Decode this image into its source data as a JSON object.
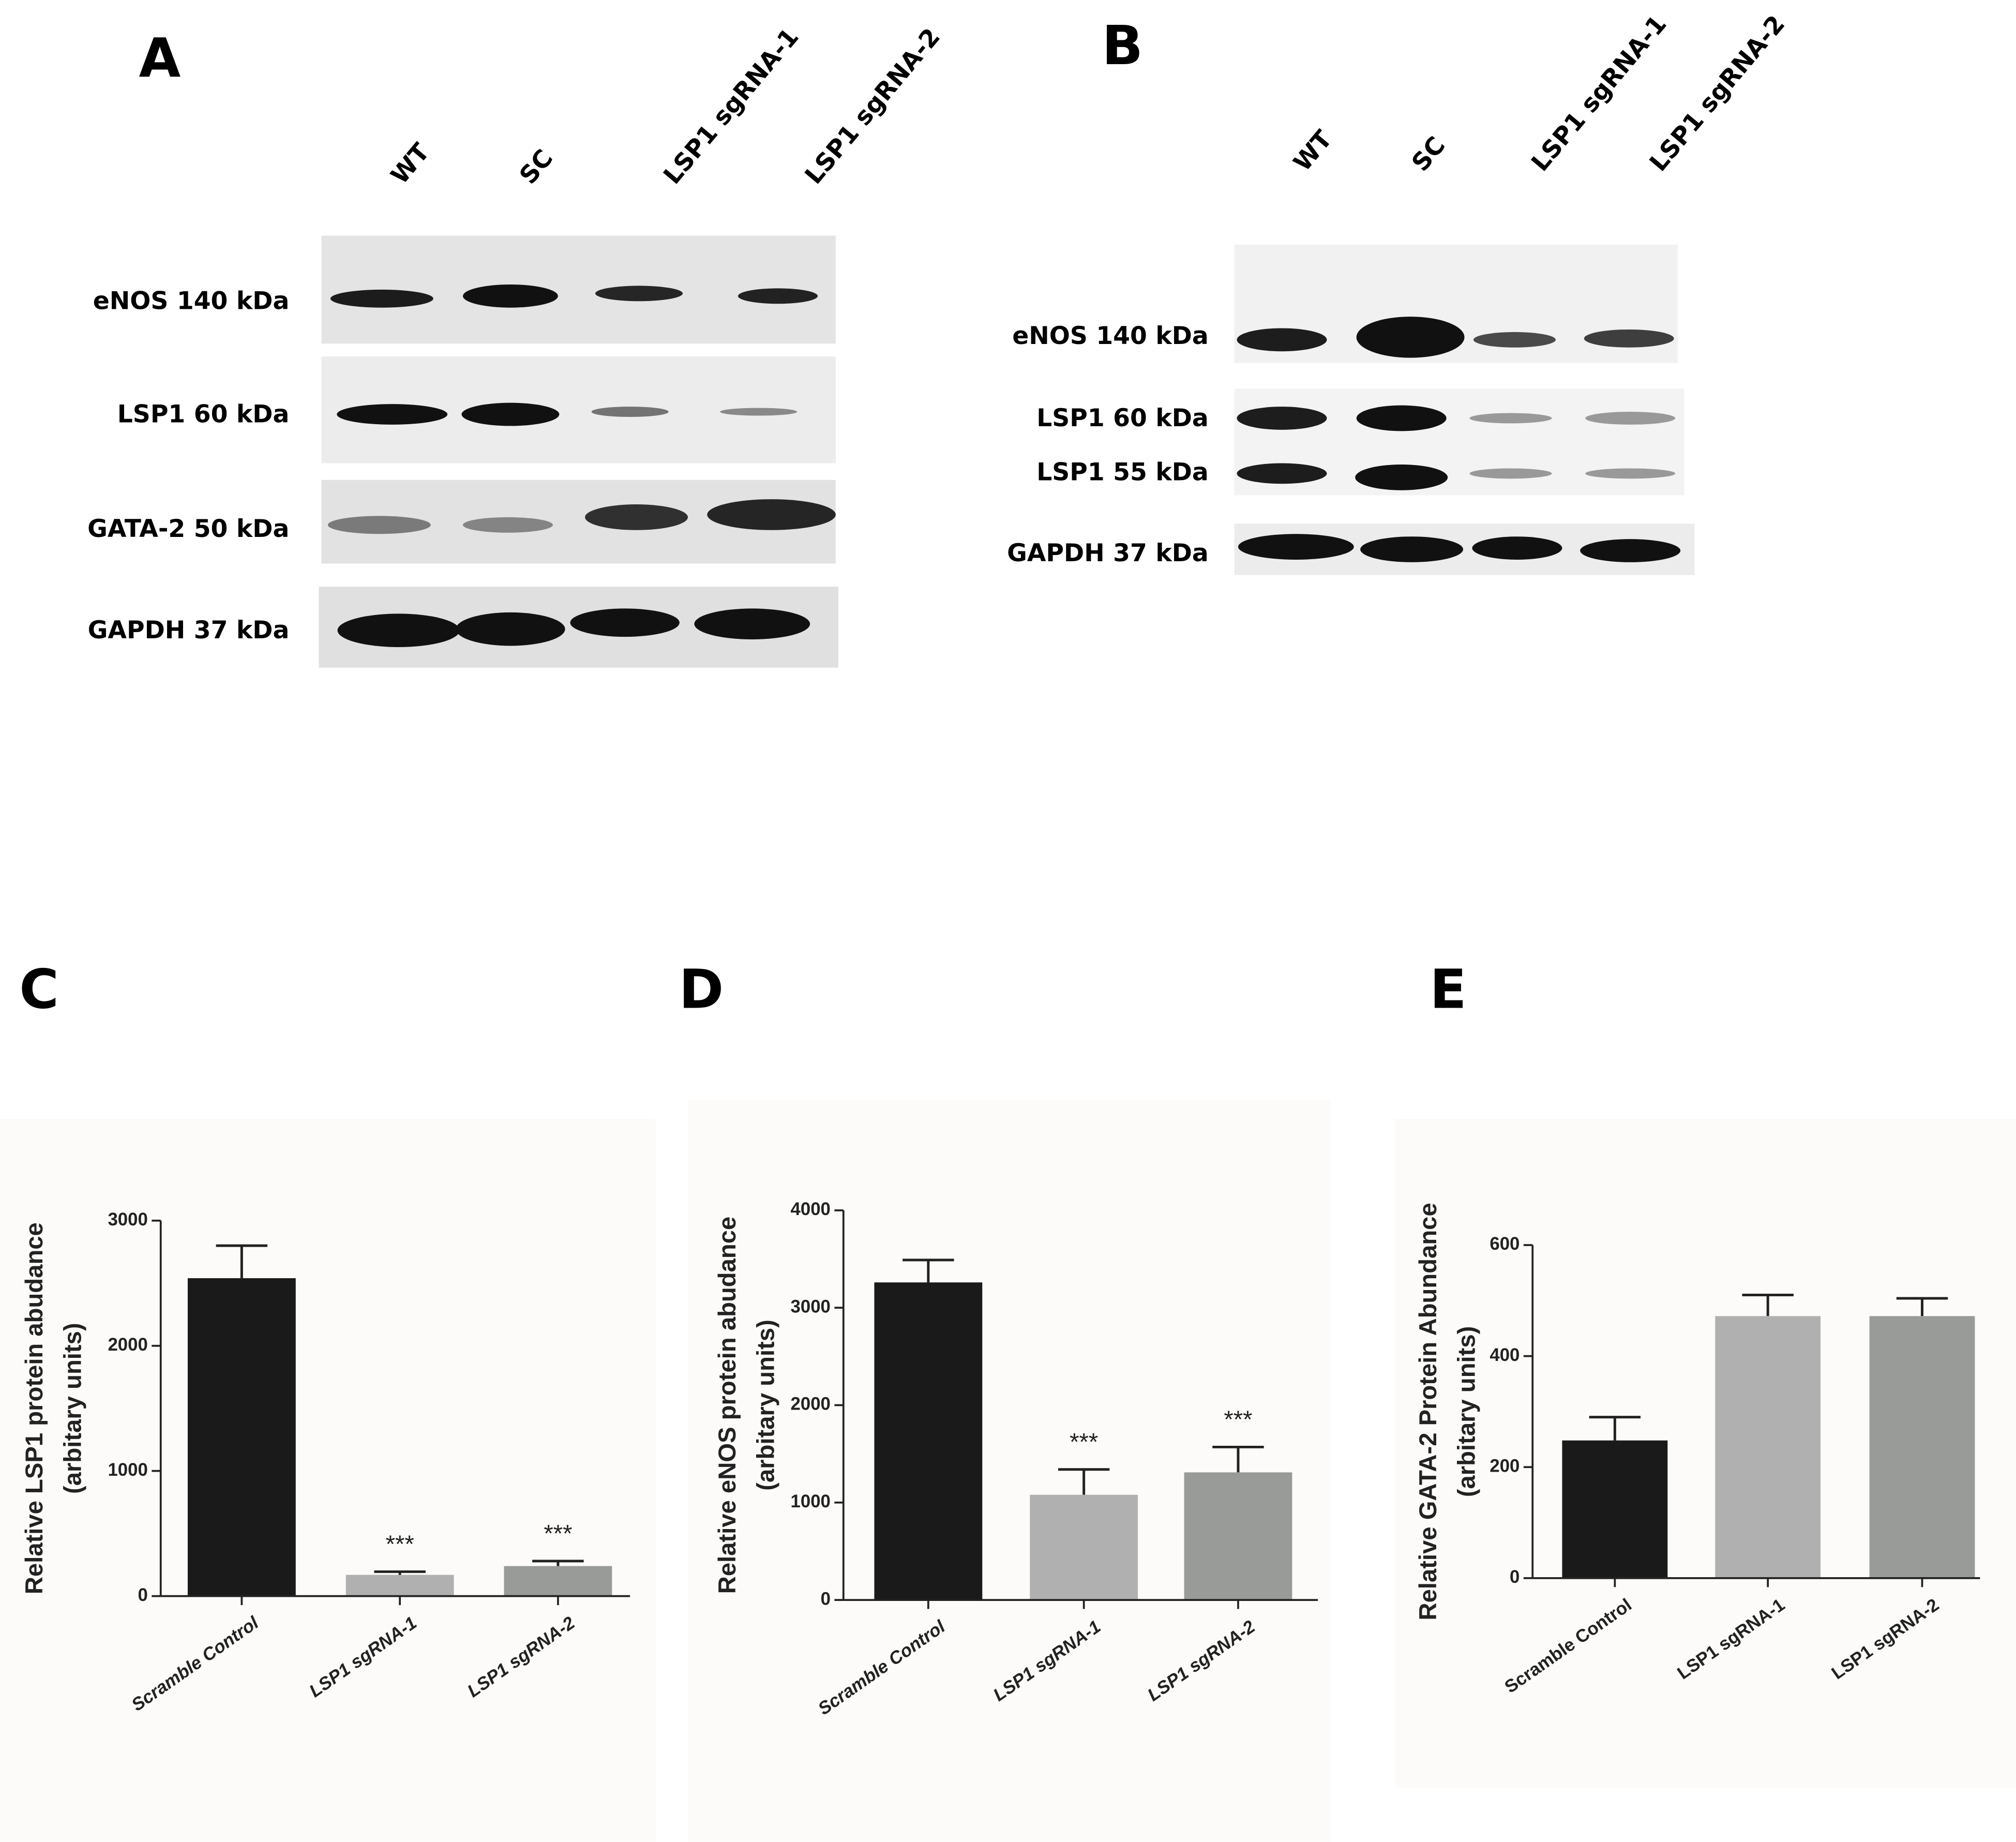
{
  "panels": {
    "A": {
      "letter": "A",
      "lanes": [
        "WT",
        "SC",
        "LSP1 sgRNA-1",
        "LSP1 sgRNA-2"
      ],
      "rows": [
        "eNOS 140 kDa",
        "LSP1 60 kDa",
        "GATA-2 50 kDa",
        "GAPDH 37 kDa"
      ]
    },
    "B": {
      "letter": "B",
      "lanes": [
        "WT",
        "SC",
        "LSP1 sgRNA-1",
        "LSP1 sgRNA-2"
      ],
      "rows": [
        "eNOS 140 kDa",
        "LSP1 60 kDa",
        "LSP1 55 kDa",
        "GAPDH 37 kDa"
      ]
    }
  },
  "chart_data": [
    {
      "type": "bar",
      "label": "C",
      "ylabel": [
        "Relative LSP1 protein abudance",
        "(arbitary units)"
      ],
      "categories": [
        "Scramble Control",
        "LSP1 sgRNA-1",
        "LSP1 sgRNA-2"
      ],
      "values": [
        2540,
        170,
        240
      ],
      "errors": [
        260,
        25,
        40
      ],
      "annotations": [
        null,
        "***",
        "***"
      ],
      "colors": [
        "#1a1a1a",
        "#b0b0b0",
        "#999b99"
      ],
      "italic_labels": true,
      "ylim": [
        0,
        3000
      ],
      "yticks": [
        0,
        1000,
        2000,
        3000
      ]
    },
    {
      "type": "bar",
      "label": "D",
      "ylabel": [
        "Relative eNOS protein abudance",
        "(arbitary units)"
      ],
      "categories": [
        "Scramble Control",
        "LSP1 sgRNA-1",
        "LSP1 sgRNA-2"
      ],
      "values": [
        3260,
        1080,
        1310
      ],
      "errors": [
        230,
        260,
        260
      ],
      "annotations": [
        null,
        "***",
        "***"
      ],
      "colors": [
        "#1a1a1a",
        "#b0b0b0",
        "#999b99"
      ],
      "italic_labels": true,
      "ylim": [
        0,
        4000
      ],
      "yticks": [
        0,
        1000,
        2000,
        3000,
        4000
      ]
    },
    {
      "type": "bar",
      "label": "E",
      "ylabel": [
        "Relative GATA-2 Protein Abundance",
        "(arbitary units)"
      ],
      "categories": [
        "Scramble Control",
        "LSP1 sgRNA-1",
        "LSP1 sgRNA-2"
      ],
      "values": [
        248,
        472,
        472
      ],
      "errors": [
        42,
        38,
        32
      ],
      "colors": [
        "#1a1a1a",
        "#b0b0b0",
        "#999b99"
      ],
      "italic_labels": false,
      "ylim": [
        0,
        600
      ],
      "yticks": [
        0,
        200,
        400,
        600
      ]
    }
  ]
}
